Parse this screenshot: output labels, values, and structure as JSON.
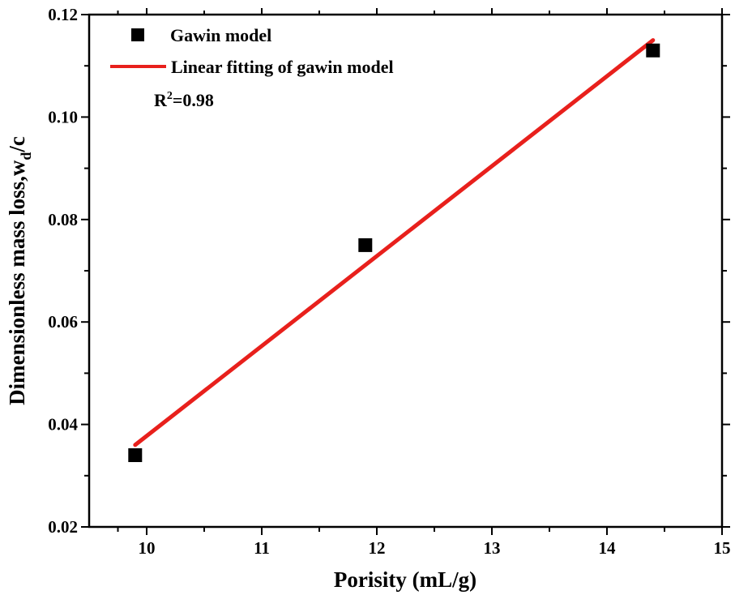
{
  "chart_data": {
    "type": "scatter",
    "xlabel": "Porisity (mL/g)",
    "ylabel": {
      "main": "Dimensionless mass loss,w",
      "sub": "d",
      "tail": "/c"
    },
    "xlim": [
      9.5,
      15
    ],
    "ylim": [
      0.02,
      0.12
    ],
    "x_ticks": [
      10,
      11,
      12,
      13,
      14,
      15
    ],
    "x_tick_labels": [
      "10",
      "11",
      "12",
      "13",
      "14",
      "15"
    ],
    "y_ticks": [
      0.02,
      0.04,
      0.06,
      0.08,
      0.1,
      0.12
    ],
    "y_tick_labels": [
      "0.02",
      "0.04",
      "0.06",
      "0.08",
      "0.10",
      "0.12"
    ],
    "grid": false,
    "legend_position": "top-left",
    "series": [
      {
        "name": "Gawin model",
        "kind": "scatter",
        "marker": "square",
        "color": "#000000",
        "x": [
          9.9,
          11.9,
          14.4
        ],
        "y": [
          0.034,
          0.075,
          0.113
        ]
      },
      {
        "name": "Linear fitting of gawin model",
        "kind": "line",
        "color": "#e8201c",
        "x": [
          9.9,
          14.4
        ],
        "y": [
          0.036,
          0.115
        ]
      }
    ],
    "annotation": {
      "main": "R",
      "sup": "2",
      "tail": "=0.98"
    }
  }
}
